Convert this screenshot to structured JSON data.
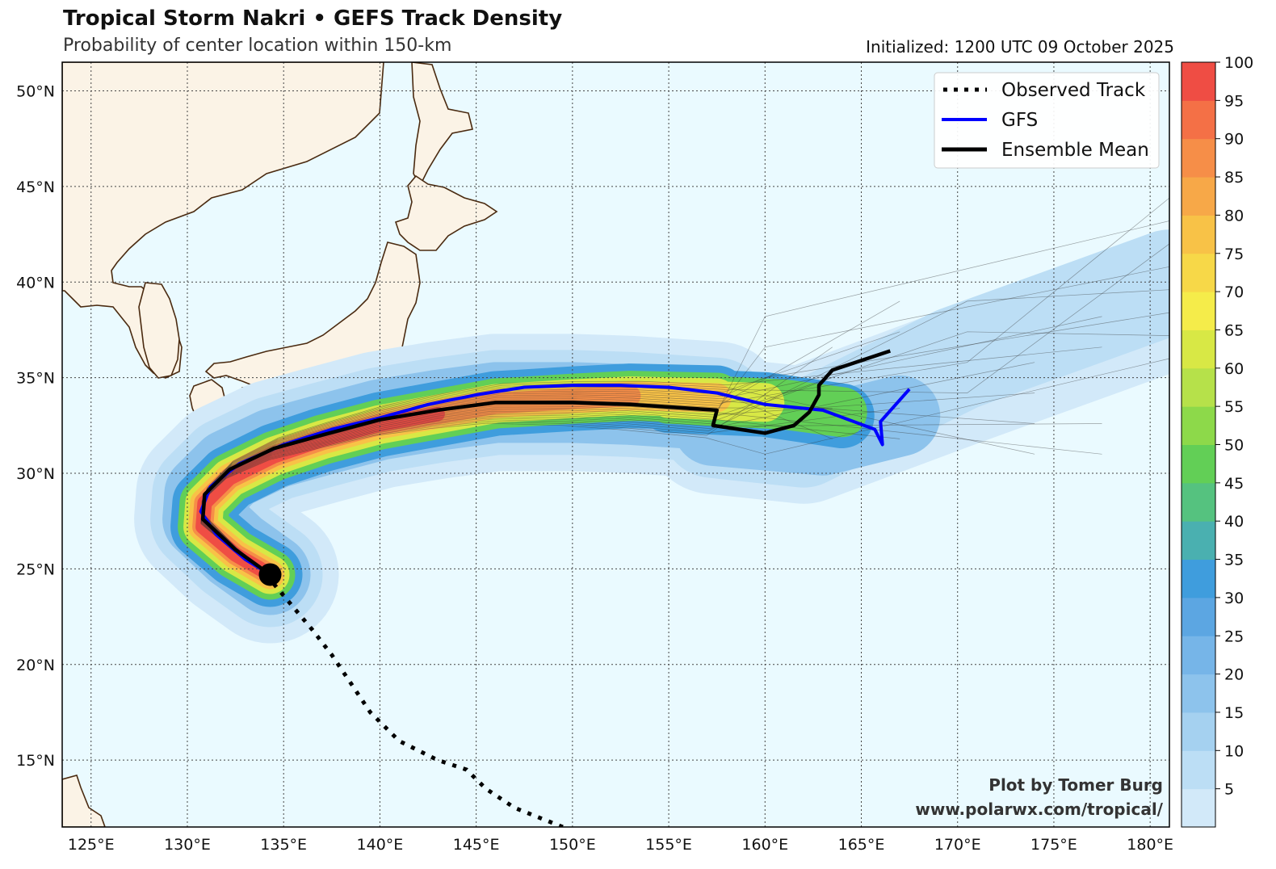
{
  "title": "Tropical Storm Nakri • GEFS Track Density",
  "subtitle": "Probability of center location within 150-km",
  "initialized": "Initialized: 1200 UTC 09 October 2025",
  "credit": {
    "line1": "Plot by Tomer Burg",
    "line2": "www.polarwx.com/tropical/"
  },
  "legend": {
    "observed": "Observed Track",
    "gfs": "GFS",
    "ensemble_mean": "Ensemble Mean"
  },
  "map": {
    "lon_range": [
      123.5,
      181
    ],
    "lat_range": [
      11.5,
      51.5
    ],
    "lon_ticks": [
      "125°E",
      "130°E",
      "135°E",
      "140°E",
      "145°E",
      "150°E",
      "155°E",
      "160°E",
      "165°E",
      "170°E",
      "175°E",
      "180°E"
    ],
    "lat_ticks": [
      "15°N",
      "20°N",
      "25°N",
      "30°N",
      "35°N",
      "40°N",
      "45°N",
      "50°N"
    ],
    "ocean_color": "#eafaff",
    "land_color": "#fbf3e6",
    "coast_color": "#4a2a10",
    "observed_track": [
      [
        149.5,
        11.5
      ],
      [
        147,
        12.5
      ],
      [
        145.5,
        13.5
      ],
      [
        144.5,
        14.5
      ],
      [
        143,
        15
      ],
      [
        141,
        16
      ],
      [
        139.5,
        17.5
      ],
      [
        138.5,
        19
      ],
      [
        137.5,
        20.5
      ],
      [
        136.5,
        21.8
      ],
      [
        135.5,
        23
      ],
      [
        134.5,
        24.2
      ]
    ],
    "gfs_track": [
      [
        134.3,
        24.7
      ],
      [
        133,
        25.5
      ],
      [
        131.5,
        26.8
      ],
      [
        130.7,
        28
      ],
      [
        131.2,
        29.3
      ],
      [
        132.7,
        30.5
      ],
      [
        135,
        31.5
      ],
      [
        137.5,
        32.3
      ],
      [
        140,
        32.9
      ],
      [
        142.5,
        33.6
      ],
      [
        145,
        34.1
      ],
      [
        147.5,
        34.5
      ],
      [
        150,
        34.6
      ],
      [
        152.5,
        34.6
      ],
      [
        155,
        34.5
      ],
      [
        157.5,
        34.2
      ],
      [
        160,
        33.6
      ],
      [
        163,
        33.3
      ],
      [
        165.7,
        32.3
      ],
      [
        166.1,
        31.5
      ],
      [
        166.0,
        32.7
      ],
      [
        167.5,
        34.4
      ]
    ],
    "mean_track": [
      [
        134.3,
        24.7
      ],
      [
        132.5,
        26
      ],
      [
        130.8,
        27.6
      ],
      [
        130.9,
        28.9
      ],
      [
        132.2,
        30.2
      ],
      [
        134.5,
        31.3
      ],
      [
        137,
        32
      ],
      [
        140,
        32.8
      ],
      [
        143,
        33.3
      ],
      [
        146,
        33.7
      ],
      [
        150,
        33.7
      ],
      [
        153,
        33.6
      ],
      [
        157.5,
        33.3
      ],
      [
        157.3,
        32.5
      ],
      [
        160,
        32.1
      ],
      [
        161.5,
        32.5
      ],
      [
        162.3,
        33.2
      ],
      [
        162.8,
        34.1
      ],
      [
        162.8,
        34.6
      ],
      [
        163.5,
        35.4
      ],
      [
        166.5,
        36.4
      ]
    ],
    "storm_center": [
      134.3,
      24.7
    ],
    "colorbar": {
      "ticks": [
        "5",
        "10",
        "15",
        "20",
        "25",
        "30",
        "35",
        "40",
        "45",
        "50",
        "55",
        "60",
        "65",
        "70",
        "75",
        "80",
        "85",
        "90",
        "95",
        "100"
      ],
      "colors": [
        "#d2e9f9",
        "#bcdef5",
        "#a5d1f0",
        "#8dc3ec",
        "#76b5e8",
        "#5ca6e2",
        "#3f9ddd",
        "#4ab0b0",
        "#55c27f",
        "#62cf56",
        "#8dd94a",
        "#b6e14a",
        "#d8e845",
        "#f5ec4a",
        "#f7d848",
        "#f8c247",
        "#f7a848",
        "#f68e48",
        "#f47046",
        "#ef4d44"
      ]
    }
  }
}
